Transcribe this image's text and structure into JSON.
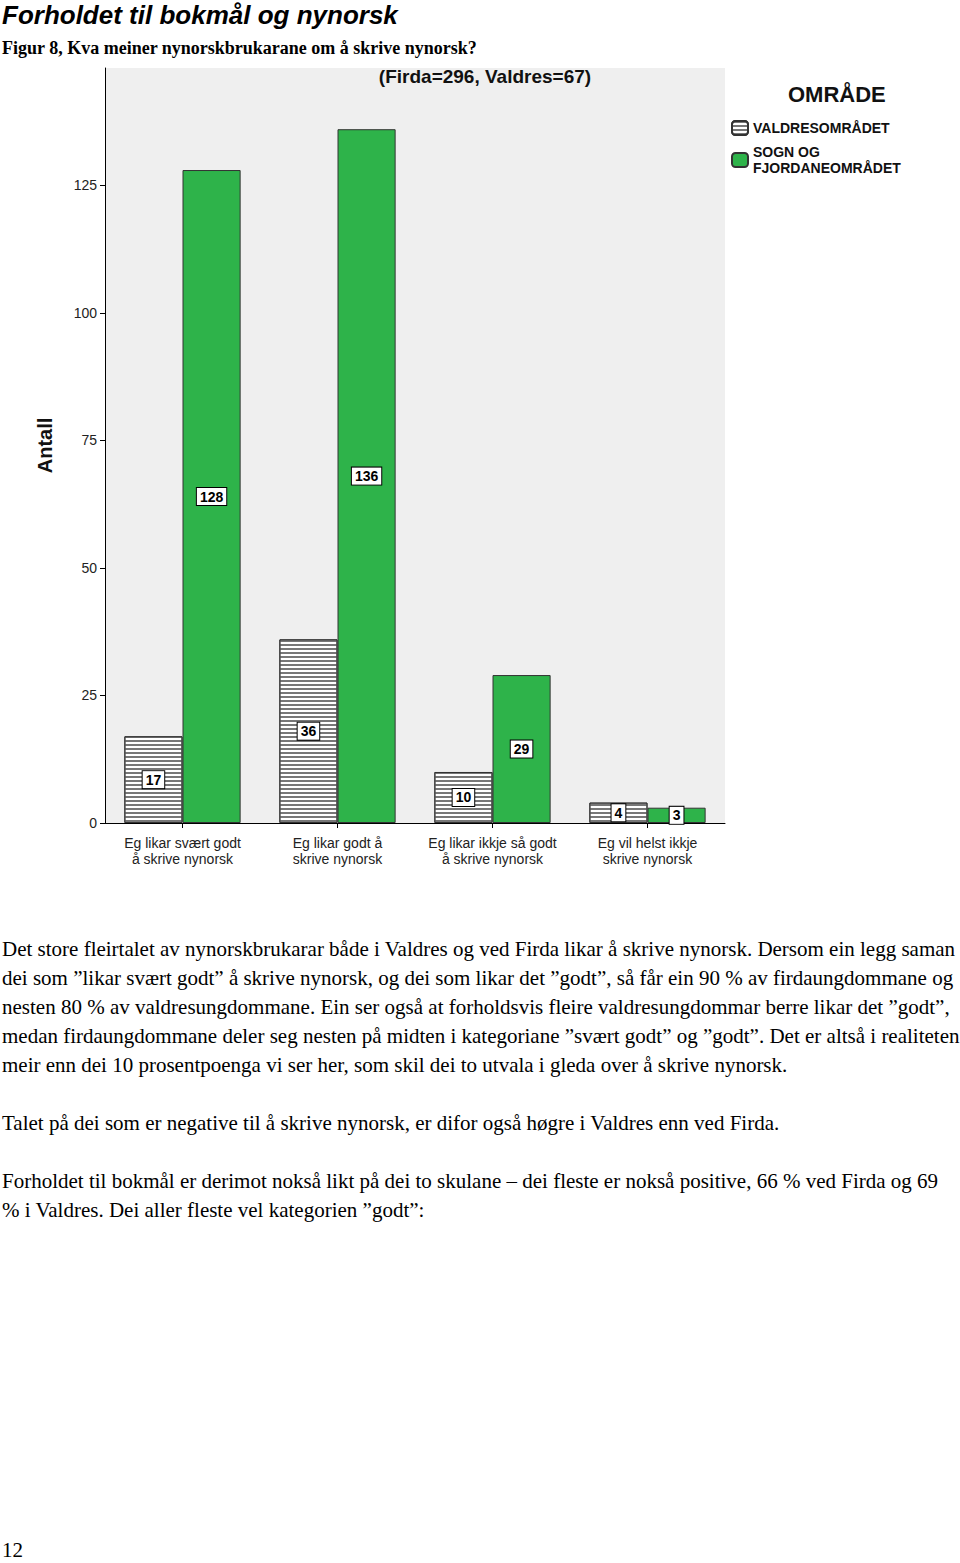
{
  "header": {
    "title": "Forholdet til bokmål og nynorsk"
  },
  "caption": "Figur 8, Kva meiner nynorskbrukarane om å skrive nynorsk?",
  "chart_data": {
    "type": "bar",
    "title": "(Firda=296, Valdres=67)",
    "y_label": "Antall",
    "legend_title": "OMRÅDE",
    "legend": "right",
    "categories": [
      "Eg likar svært godt\nå skrive nynorsk",
      "Eg likar godt å\nskrive nynorsk",
      "Eg likar ikkje så godt\nå skrive nynorsk",
      "Eg vil helst ikkje\nskrive nynorsk"
    ],
    "series": [
      {
        "name": "VALDRESOMRÅDET",
        "color": "#ffffff",
        "values": [
          17,
          36,
          10,
          4
        ]
      },
      {
        "name": "SOGN OG\nFJORDANEOMRÅDET",
        "color": "#2eb34a",
        "values": [
          128,
          136,
          29,
          3
        ]
      }
    ],
    "ylim": [
      0,
      148
    ],
    "yticks": [
      0,
      25,
      50,
      75,
      100,
      125
    ],
    "grid": false,
    "data_labels": true
  },
  "paragraphs": [
    "Det store fleirtalet av nynorskbrukarar både i Valdres og ved Firda likar å skrive nynorsk. Dersom ein legg saman dei som ”likar svært godt” å skrive nynorsk, og dei som likar det ”godt”, så får ein 90 % av firdaungdommane og nesten 80 % av valdresungdommane. Ein ser også at forholdsvis fleire valdresungdommar berre likar det ”godt”, medan firdaungdommane deler seg nesten på midten i kategoriane ”svært godt” og ”godt”. Det er altså i realiteten meir enn dei 10 prosentpoenga vi ser her, som skil dei to utvala i gleda over å skrive nynorsk.",
    "Talet på dei som er negative til å skrive nynorsk, er difor også høgre i Valdres enn ved Firda.",
    "Forholdet til bokmål er derimot nokså likt på dei to skulane – dei fleste er nokså positive, 66 % ved Firda og 69 % i Valdres. Dei aller fleste vel kategorien ”godt”:"
  ],
  "page_number": "12"
}
